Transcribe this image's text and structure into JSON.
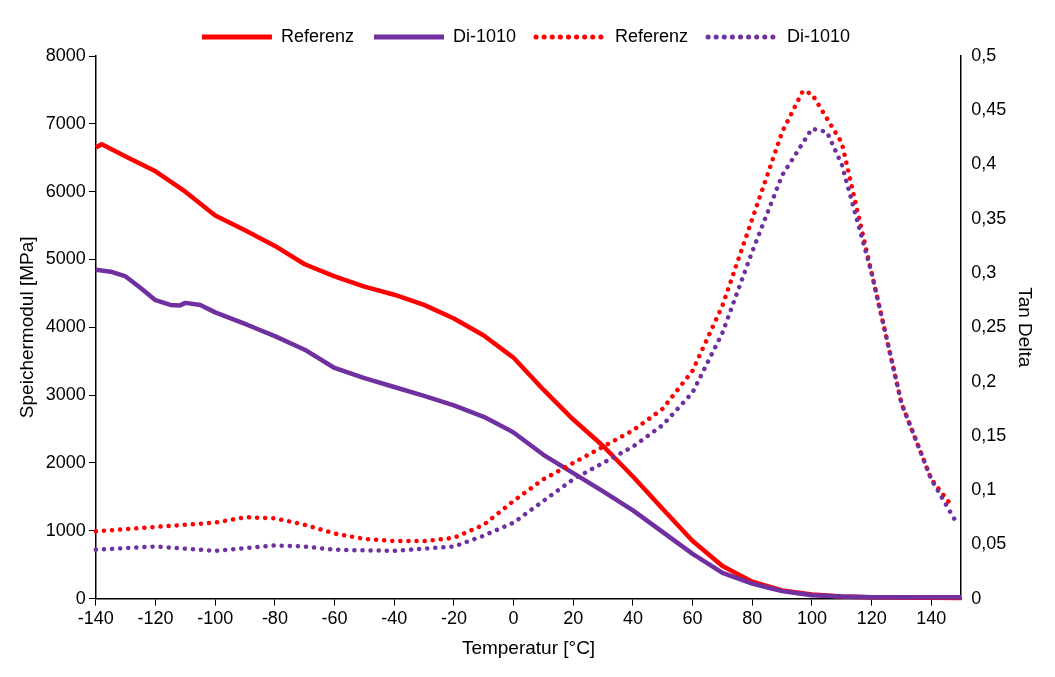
{
  "chart_data": {
    "type": "line",
    "xlabel": "Temperatur [°C]",
    "ylabel": "Speichermodul [MPa]",
    "y2label": "Tan Delta",
    "legend": "top",
    "grid": false,
    "marker": "none",
    "xlim": [
      -140,
      150
    ],
    "xticks": [
      -140,
      -120,
      -100,
      -80,
      -60,
      -40,
      -20,
      0,
      20,
      40,
      60,
      80,
      100,
      120,
      140
    ],
    "ylim": [
      0,
      8000
    ],
    "yticks": [
      0,
      1000,
      2000,
      3000,
      4000,
      5000,
      6000,
      7000,
      8000
    ],
    "y2lim": [
      0,
      0.5
    ],
    "y2ticks": [
      {
        "value": 0,
        "label": "0"
      },
      {
        "value": 0.05,
        "label": "0,05"
      },
      {
        "value": 0.1,
        "label": "0,1"
      },
      {
        "value": 0.15,
        "label": "0,15"
      },
      {
        "value": 0.2,
        "label": "0,2"
      },
      {
        "value": 0.25,
        "label": "0,25"
      },
      {
        "value": 0.3,
        "label": "0,3"
      },
      {
        "value": 0.35,
        "label": "0,35"
      },
      {
        "value": 0.4,
        "label": "0,4"
      },
      {
        "value": 0.45,
        "label": "0,45"
      },
      {
        "value": 0.5,
        "label": "0,5"
      }
    ],
    "series": [
      {
        "name": "Referenz",
        "color": "#ff0000",
        "line_style": "solid",
        "x": [
          -140,
          -138,
          -130,
          -120,
          -110,
          -100,
          -90,
          -80,
          -70,
          -60,
          -50,
          -40,
          -30,
          -20,
          -10,
          0,
          10,
          20,
          30,
          40,
          50,
          60,
          70,
          80,
          90,
          100,
          110,
          120,
          150
        ],
        "values": [
          6650,
          6700,
          6520,
          6300,
          6000,
          5650,
          5430,
          5200,
          4930,
          4750,
          4600,
          4480,
          4330,
          4130,
          3880,
          3550,
          3080,
          2640,
          2250,
          1800,
          1320,
          850,
          480,
          250,
          120,
          60,
          30,
          20,
          10
        ]
      },
      {
        "name": "Di-1010",
        "color": "#7030a0",
        "line_style": "solid",
        "x": [
          -140,
          -135,
          -130,
          -125,
          -120,
          -115,
          -112,
          -110,
          -105,
          -100,
          -90,
          -80,
          -70,
          -60,
          -50,
          -40,
          -30,
          -20,
          -10,
          0,
          10,
          20,
          30,
          40,
          50,
          60,
          70,
          80,
          90,
          100,
          110,
          120,
          150
        ],
        "values": [
          4850,
          4820,
          4750,
          4580,
          4400,
          4330,
          4320,
          4360,
          4330,
          4220,
          4050,
          3870,
          3670,
          3400,
          3250,
          3120,
          2990,
          2850,
          2680,
          2450,
          2120,
          1850,
          1580,
          1300,
          980,
          660,
          380,
          220,
          110,
          50,
          30,
          20,
          20
        ]
      },
      {
        "name": "Referenz",
        "color": "#ff0000",
        "line_style": "dotted",
        "axis": "y2",
        "x": [
          -140,
          -120,
          -100,
          -90,
          -80,
          -70,
          -60,
          -50,
          -40,
          -30,
          -20,
          -10,
          0,
          10,
          20,
          30,
          40,
          50,
          60,
          70,
          80,
          90,
          97,
          100,
          110,
          120,
          130,
          140,
          147
        ],
        "values": [
          0.062,
          0.066,
          0.07,
          0.075,
          0.074,
          0.068,
          0.06,
          0.055,
          0.053,
          0.053,
          0.056,
          0.068,
          0.09,
          0.11,
          0.125,
          0.14,
          0.155,
          0.175,
          0.21,
          0.27,
          0.35,
          0.43,
          0.468,
          0.465,
          0.42,
          0.3,
          0.18,
          0.11,
          0.085
        ]
      },
      {
        "name": "Di-1010",
        "color": "#7030a0",
        "line_style": "dotted",
        "axis": "y2",
        "x": [
          -140,
          -120,
          -100,
          -80,
          -70,
          -60,
          -40,
          -20,
          -10,
          0,
          10,
          20,
          30,
          40,
          50,
          60,
          70,
          80,
          90,
          100,
          105,
          110,
          120,
          130,
          140,
          148
        ],
        "values": [
          0.045,
          0.048,
          0.044,
          0.049,
          0.048,
          0.045,
          0.044,
          0.048,
          0.058,
          0.07,
          0.09,
          0.11,
          0.125,
          0.14,
          0.16,
          0.19,
          0.245,
          0.32,
          0.39,
          0.433,
          0.43,
          0.4,
          0.3,
          0.18,
          0.11,
          0.072
        ]
      }
    ]
  }
}
